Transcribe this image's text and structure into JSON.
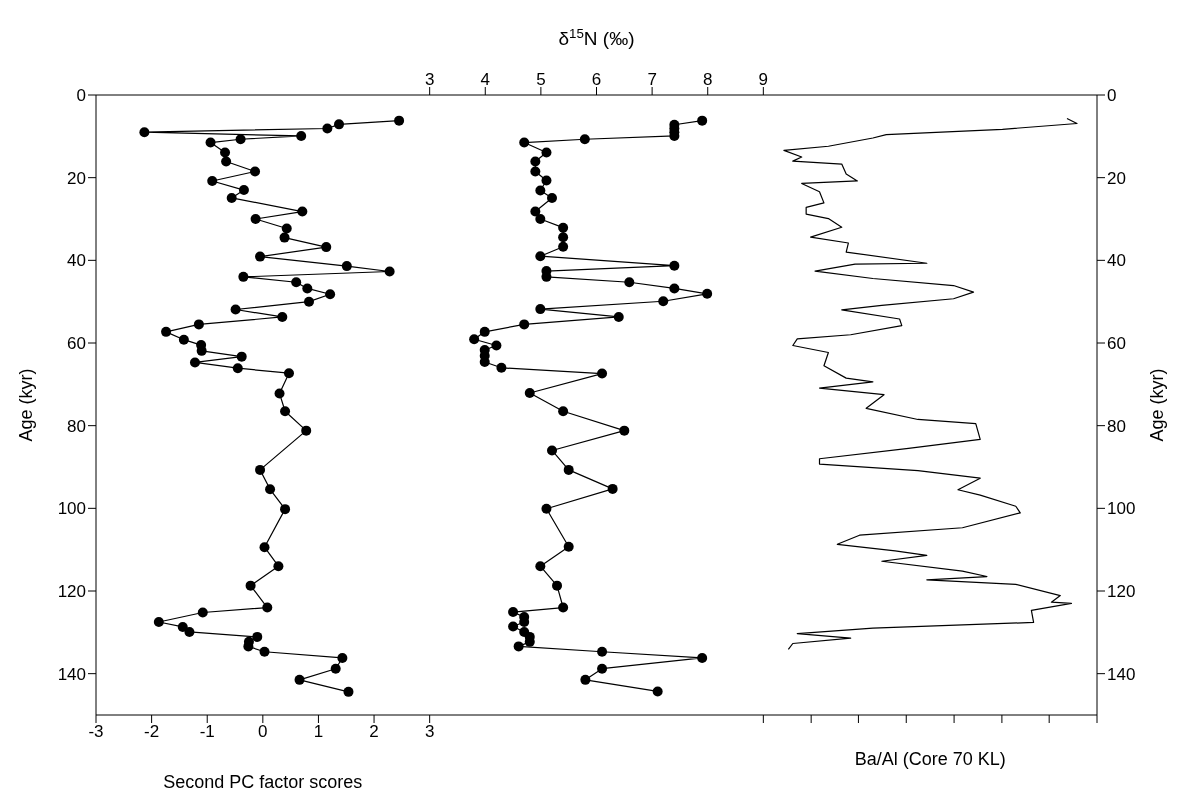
{
  "chart_data": {
    "type": "line",
    "x2label": "δ$^{15}$N (‰)",
    "xlabel": "Second PC factor scores",
    "ylabel": "Age (kyr)",
    "y2label": "Age (kyr)",
    "annotations": [
      "Ba/Al (Core 70 KL)"
    ],
    "xlim": [
      -3,
      15
    ],
    "xticks": [
      -3,
      -2,
      -1,
      0,
      1,
      2,
      3,
      {
        "value": 9,
        "label": null
      },
      {
        "value": 9.86,
        "label": null
      },
      {
        "value": 10.71,
        "label": null
      },
      {
        "value": 11.57,
        "label": null
      },
      {
        "value": 12.43,
        "label": null
      },
      {
        "value": 13.29,
        "label": null
      },
      {
        "value": 14.14,
        "label": null
      },
      {
        "value": 15,
        "label": null
      }
    ],
    "x2lim": [
      -3,
      15
    ],
    "x2ticks": [
      3,
      4,
      5,
      6,
      7,
      8,
      9
    ],
    "ylim": [
      150,
      0
    ],
    "yticks": [
      0,
      20,
      40,
      60,
      80,
      100,
      120,
      140
    ],
    "y2lim": [
      150,
      0
    ],
    "y2ticks": [
      0,
      20,
      40,
      60,
      80,
      100,
      120,
      140
    ],
    "grid": false,
    "marker": "circle",
    "line_style": "solid",
    "series": [
      {
        "color": "#000000",
        "x": [
          2.45,
          1.37,
          1.16,
          -2.13,
          0.69,
          -0.4,
          -0.94,
          -0.68,
          -0.66,
          -0.14,
          -0.91,
          -0.34,
          -0.56,
          0.71,
          -0.13,
          0.43,
          0.39,
          1.14,
          -0.05,
          1.51,
          2.28,
          -0.35,
          0.6,
          0.8,
          1.21,
          0.83,
          -0.49,
          0.35,
          -1.15,
          -1.74,
          -1.42,
          -1.11,
          -1.1,
          -0.38,
          -1.22,
          -0.45,
          0.47,
          0.3,
          0.4,
          0.78,
          -0.05,
          0.13,
          0.4,
          0.03,
          0.28,
          -0.22,
          0.08,
          -1.08,
          -1.87,
          -1.44,
          -1.32,
          -0.1,
          -0.25,
          -0.26,
          0.03,
          1.43,
          1.31,
          0.66,
          1.54
        ],
        "values": [
          6.2,
          7.1,
          8.1,
          9.0,
          9.9,
          10.7,
          11.5,
          13.9,
          16.1,
          18.5,
          20.8,
          23.0,
          24.9,
          28.2,
          30.0,
          32.3,
          34.5,
          36.8,
          39.1,
          41.4,
          42.7,
          44.0,
          45.3,
          46.8,
          48.2,
          50.0,
          51.9,
          53.7,
          55.5,
          57.3,
          59.2,
          60.5,
          61.9,
          63.3,
          64.7,
          66.1,
          67.3,
          72.2,
          76.5,
          81.2,
          90.7,
          95.4,
          100.2,
          109.4,
          114.0,
          118.7,
          124.0,
          125.2,
          127.5,
          128.7,
          129.9,
          131.1,
          132.3,
          133.4,
          134.7,
          136.2,
          138.8,
          141.5,
          144.4
        ]
      },
      {
        "color": "#000000",
        "x": [
          7.9,
          7.4,
          7.4,
          7.4,
          7.4,
          5.79,
          4.7,
          5.1,
          4.9,
          4.9,
          5.1,
          4.99,
          5.2,
          4.9,
          4.99,
          5.4,
          5.4,
          5.4,
          4.99,
          7.4,
          5.1,
          5.1,
          6.59,
          7.4,
          7.99,
          7.2,
          4.99,
          6.4,
          4.7,
          3.99,
          3.8,
          4.2,
          3.99,
          3.99,
          3.99,
          4.29,
          6.1,
          4.8,
          5.4,
          6.5,
          5.2,
          5.5,
          6.29,
          5.1,
          5.5,
          4.99,
          5.29,
          5.4,
          4.5,
          4.7,
          4.7,
          4.5,
          4.7,
          4.8,
          4.8,
          4.6,
          6.1,
          7.9,
          6.1,
          5.8,
          7.1
        ],
        "values": [
          6.2,
          7.2,
          8.1,
          9.0,
          9.9,
          10.7,
          11.5,
          13.9,
          16.1,
          18.5,
          20.7,
          23.1,
          24.9,
          28.2,
          30.0,
          32.1,
          34.4,
          36.7,
          39.0,
          41.3,
          42.6,
          44.0,
          45.3,
          46.8,
          48.1,
          49.9,
          51.8,
          53.7,
          55.5,
          57.3,
          59.1,
          60.6,
          61.7,
          63.1,
          64.6,
          66.0,
          67.4,
          72.1,
          76.5,
          81.2,
          86.0,
          90.7,
          95.3,
          100.1,
          109.3,
          114.0,
          118.7,
          124.0,
          125.1,
          126.3,
          127.5,
          128.6,
          129.9,
          131.1,
          132.3,
          133.4,
          134.7,
          136.2,
          138.8,
          141.5,
          144.3
        ]
      },
      {
        "color": "#000000",
        "marker": "none",
        "x": [
          14.46,
          14.64,
          13.3,
          11.21,
          10.97,
          10.17,
          9.37,
          9.69,
          9.53,
          10.41,
          10.49,
          10.69,
          9.69,
          10.01,
          10.09,
          9.77,
          9.77,
          10.17,
          10.41,
          9.85,
          10.53,
          10.49,
          11.94,
          10.65,
          9.93,
          10.97,
          12.42,
          12.78,
          12.42,
          11.13,
          10.41,
          11.45,
          11.49,
          10.57,
          9.61,
          9.53,
          10.17,
          10.09,
          10.49,
          10.97,
          10.01,
          11.17,
          10.85,
          11.78,
          12.82,
          12.9,
          11.61,
          10.01,
          10.01,
          11.78,
          12.9,
          12.5,
          12.9,
          13.54,
          13.62,
          12.58,
          10.73,
          10.33,
          11.37,
          11.94,
          11.13,
          12.58,
          13.02,
          11.94,
          13.54,
          14.34,
          14.18,
          14.54,
          13.82,
          13.86,
          10.97,
          9.61,
          10.57,
          9.53,
          9.45
        ],
        "values": [
          5.7,
          6.9,
          8.3,
          9.6,
          10.4,
          12.4,
          13.4,
          15.0,
          16.0,
          16.7,
          19.1,
          20.8,
          21.4,
          23.4,
          26.1,
          27.2,
          28.8,
          29.9,
          32.0,
          34.4,
          35.8,
          38.0,
          40.7,
          40.9,
          42.6,
          44.4,
          46.1,
          47.7,
          49.3,
          50.9,
          52.0,
          54.2,
          55.8,
          58.0,
          59.0,
          60.6,
          62.3,
          65.5,
          68.5,
          69.4,
          70.9,
          72.5,
          75.8,
          78.5,
          79.5,
          83.3,
          85.5,
          88.0,
          89.3,
          90.9,
          92.7,
          95.5,
          96.8,
          99.5,
          101.1,
          104.7,
          106.5,
          108.7,
          110.3,
          111.4,
          112.8,
          115.2,
          116.5,
          117.3,
          118.4,
          121.1,
          122.7,
          123.0,
          124.7,
          127.6,
          129.0,
          130.3,
          131.4,
          132.7,
          134.1
        ]
      }
    ]
  }
}
